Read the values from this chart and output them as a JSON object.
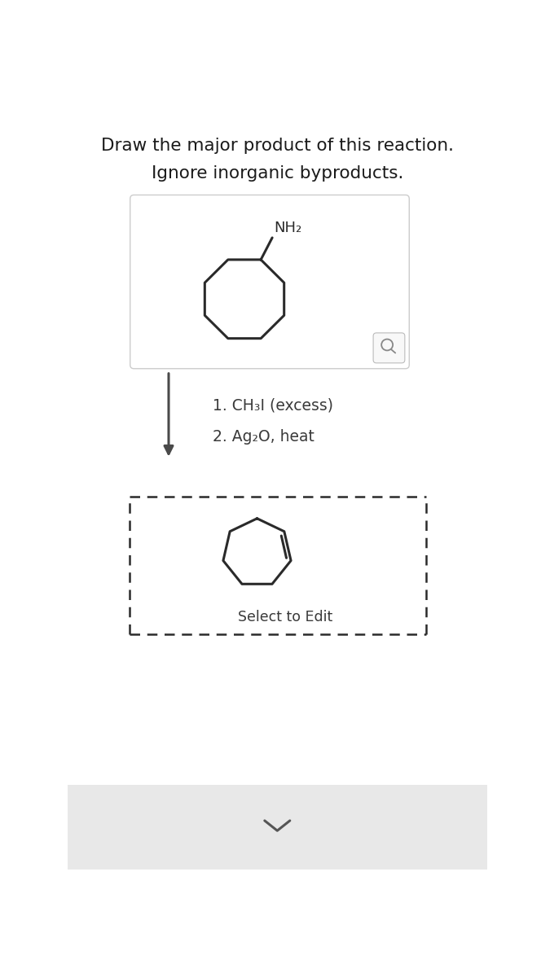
{
  "title_line1": "Draw the major product of this reaction.",
  "title_line2": "Ignore inorganic byproducts.",
  "title_fontsize": 15.5,
  "title_color": "#1a1a1a",
  "bg_color": "#ffffff",
  "bottom_bar_color": "#e8e8e8",
  "reactant_box_color": "#ffffff",
  "reactant_box_edge": "#cccccc",
  "nh2_label": "NH₂",
  "reagent_line1": "1. CH₃I (excess)",
  "reagent_line2": "2. Ag₂O, heat",
  "reagent_fontsize": 13.5,
  "reagent_color": "#3a3a3a",
  "arrow_color": "#4a4a4a",
  "product_box_edge": "#2a2a2a",
  "molecule_color": "#2a2a2a",
  "molecule_lw": 2.2,
  "select_text": "Select to Edit",
  "select_fontsize": 12.5,
  "n_octyl": 8,
  "n_heptyl": 7,
  "fig_w": 6.64,
  "fig_h": 12.0,
  "dpi": 100
}
